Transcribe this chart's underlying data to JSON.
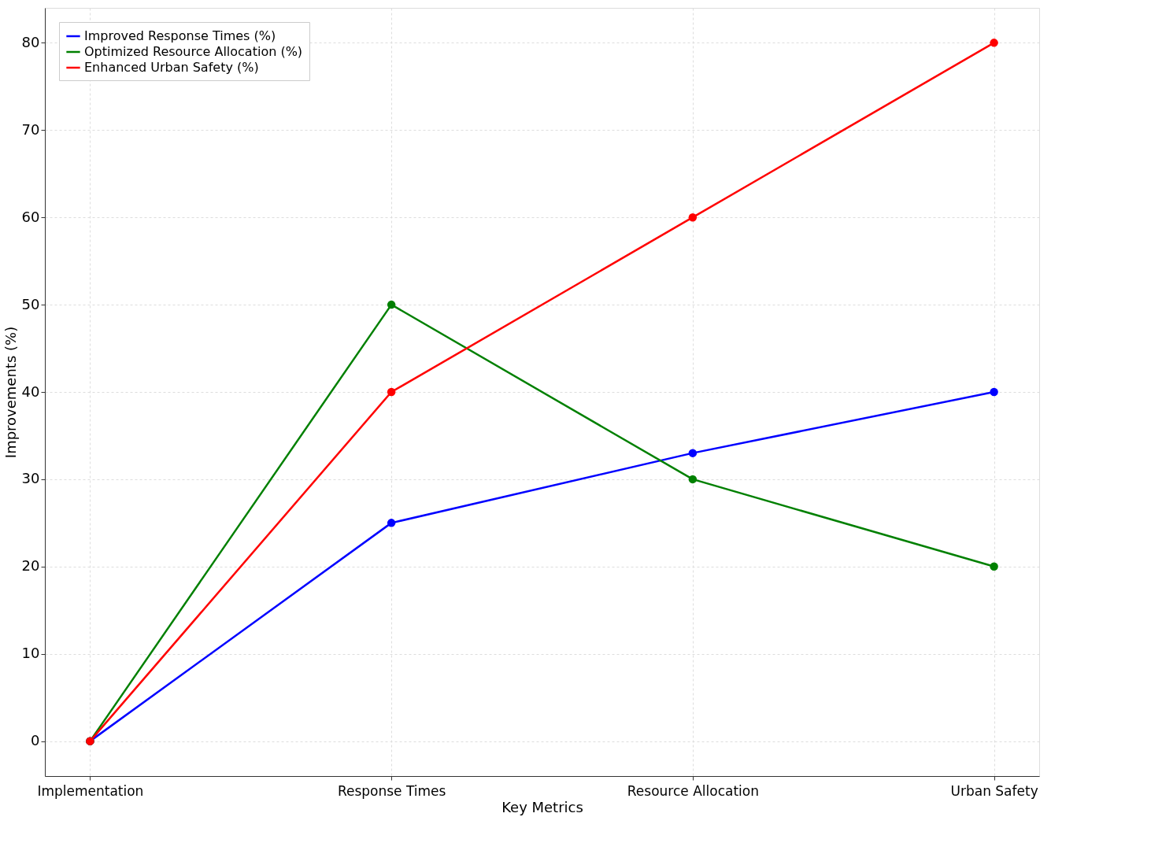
{
  "chart_data": {
    "type": "line",
    "xlabel": "Key Metrics",
    "ylabel": "Improvements (%)",
    "categories": [
      "Implementation",
      "Response Times",
      "Resource Allocation",
      "Urban Safety"
    ],
    "series": [
      {
        "name": "Improved Response Times (%)",
        "color": "#0000ff",
        "values": [
          0,
          25,
          33,
          40
        ]
      },
      {
        "name": "Optimized Resource Allocation (%)",
        "color": "#008000",
        "values": [
          0,
          50,
          30,
          20
        ]
      },
      {
        "name": "Enhanced Urban Safety (%)",
        "color": "#ff0000",
        "values": [
          0,
          40,
          60,
          80
        ]
      }
    ],
    "ylim": [
      -4,
      84
    ],
    "yticks": [
      0,
      10,
      20,
      30,
      40,
      50,
      60,
      70,
      80
    ],
    "grid": true,
    "legend": "top left",
    "marker": "circle",
    "line_style": "solid"
  }
}
